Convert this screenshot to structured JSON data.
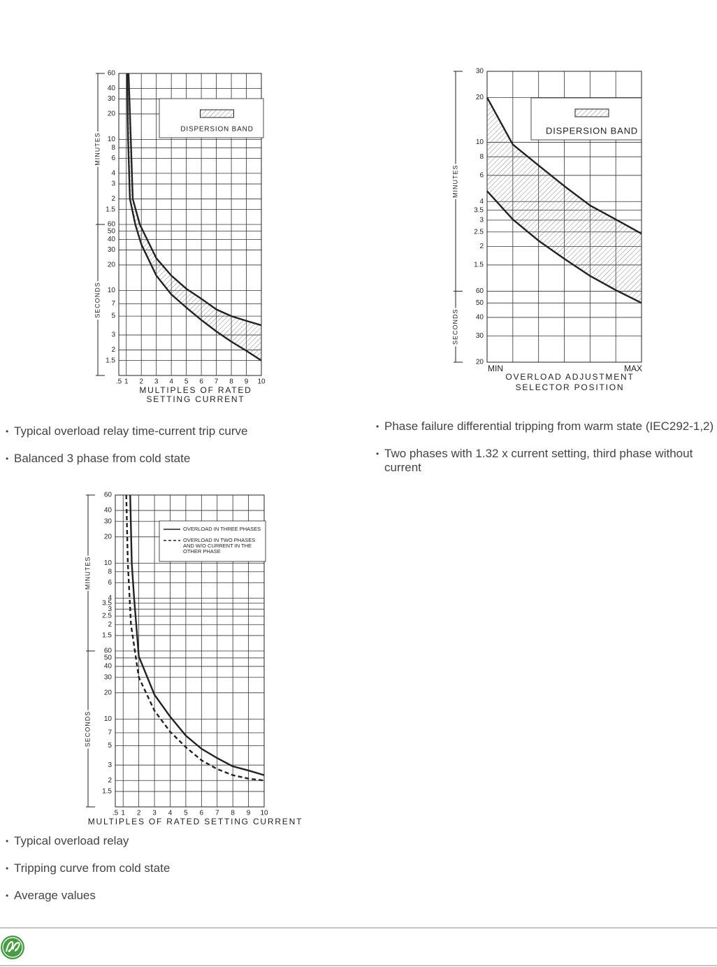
{
  "chart_data": [
    {
      "type": "line",
      "log_y": true,
      "band": true,
      "legend": "DISPERSION BAND",
      "ylabel_upper": "MINUTES",
      "ylabel_lower": "SECONDS",
      "xlabel": [
        "MULTIPLES OF RATED",
        "SETTING CURRENT"
      ],
      "xlim": [
        0.5,
        10
      ],
      "xticks": [
        {
          "value": 0.5,
          "label": ".5"
        },
        1,
        2,
        3,
        4,
        5,
        6,
        7,
        8,
        9,
        10
      ],
      "ylim": [
        1,
        3600
      ],
      "yticks": [
        {
          "value": 3600,
          "label": "60"
        },
        {
          "value": 2400,
          "label": "40"
        },
        {
          "value": 1800,
          "label": "30"
        },
        {
          "value": 1200,
          "label": "20"
        },
        {
          "value": 600,
          "label": "10"
        },
        {
          "value": 480,
          "label": "8"
        },
        {
          "value": 360,
          "label": "6"
        },
        {
          "value": 240,
          "label": "4"
        },
        {
          "value": 180,
          "label": "3"
        },
        {
          "value": 120,
          "label": "2"
        },
        {
          "value": 90,
          "label": "1.5"
        },
        60,
        50,
        40,
        30,
        20,
        10,
        7,
        5,
        3,
        2,
        1.5
      ],
      "series": [
        {
          "color": "#222222",
          "x": [
            1.15,
            1.3,
            1.43,
            1.9,
            3,
            4,
            5,
            6,
            7,
            8,
            9,
            10
          ],
          "values": [
            3600,
            600,
            120,
            60,
            24,
            15,
            10.5,
            8,
            6,
            5,
            4.4,
            3.9
          ]
        },
        {
          "color": "#222222",
          "x": [
            1.05,
            1.12,
            1.24,
            1.6,
            2,
            3,
            4,
            5,
            6,
            7,
            8,
            9,
            10
          ],
          "values": [
            3600,
            600,
            120,
            60,
            35,
            15,
            9,
            6.3,
            4.5,
            3.3,
            2.5,
            1.95,
            1.5
          ]
        }
      ],
      "captions": [
        "Typical overload relay time-current trip curve",
        "Balanced 3 phase from cold state"
      ]
    },
    {
      "type": "line",
      "log_y": true,
      "band": true,
      "legend": "DISPERSION BAND",
      "ylabel_upper": "MINUTES",
      "ylabel_lower": "SECONDS",
      "xlabel": [
        "OVERLOAD ADJUSTMENT",
        "SELECTOR POSITION"
      ],
      "categories": [
        "MIN",
        null,
        null,
        null,
        null,
        null,
        "MAX"
      ],
      "ylim": [
        20,
        1800
      ],
      "yticks": [
        {
          "value": 1800,
          "label": "30"
        },
        {
          "value": 1200,
          "label": "20"
        },
        {
          "value": 600,
          "label": "10"
        },
        {
          "value": 480,
          "label": "8"
        },
        {
          "value": 360,
          "label": "6"
        },
        {
          "value": 240,
          "label": "4"
        },
        {
          "value": 210,
          "label": "3.5"
        },
        {
          "value": 180,
          "label": "3"
        },
        {
          "value": 150,
          "label": "2.5"
        },
        {
          "value": 120,
          "label": "2"
        },
        {
          "value": 90,
          "label": "1.5"
        },
        60,
        50,
        40,
        30,
        20
      ],
      "series": [
        {
          "color": "#222222",
          "values": [
            1200,
            580,
            420,
            305,
            226,
            182,
            146
          ]
        },
        {
          "color": "#222222",
          "values": [
            282,
            182,
            131,
            99,
            76,
            61,
            50
          ]
        }
      ],
      "captions": [
        "Phase failure differential tripping from warm state (IEC292-1,2)",
        "Two phases with 1.32 x current setting, third phase without current"
      ]
    },
    {
      "type": "line",
      "log_y": true,
      "band": false,
      "ylabel_upper": "MINUTES",
      "ylabel_lower": "SECONDS",
      "xlabel": [
        "MULTIPLES OF RATED SETTING CURRENT"
      ],
      "xlim": [
        0.5,
        10
      ],
      "xticks": [
        {
          "value": 0.5,
          "label": ".5"
        },
        1,
        2,
        3,
        4,
        5,
        6,
        7,
        8,
        9,
        10
      ],
      "ylim": [
        1,
        3600
      ],
      "yticks": [
        {
          "value": 3600,
          "label": "60"
        },
        {
          "value": 2400,
          "label": "40"
        },
        {
          "value": 1800,
          "label": "30"
        },
        {
          "value": 1200,
          "label": "20"
        },
        {
          "value": 600,
          "label": "10"
        },
        {
          "value": 480,
          "label": "8"
        },
        {
          "value": 360,
          "label": "6"
        },
        {
          "value": 240,
          "label": "4"
        },
        {
          "value": 210,
          "label": "3.5"
        },
        {
          "value": 180,
          "label": "3"
        },
        {
          "value": 150,
          "label": "2.5"
        },
        {
          "value": 120,
          "label": "2"
        },
        {
          "value": 90,
          "label": "1.5"
        },
        60,
        50,
        40,
        30,
        20,
        10,
        7,
        5,
        3,
        2,
        1.5
      ],
      "series": [
        {
          "name": "OVERLOAD IN THREE PHASES",
          "style": "solid",
          "color": "#222222",
          "x": [
            1.45,
            1.55,
            1.7,
            2,
            3,
            4,
            5,
            6,
            7,
            8,
            9,
            10
          ],
          "values": [
            3600,
            600,
            240,
            52,
            19,
            10.7,
            6.5,
            4.6,
            3.6,
            2.9,
            2.6,
            2.3
          ]
        },
        {
          "name": "OVERLOAD IN TWO PHASES AND W/O CURRENT IN THE OTHER PHASE",
          "style": "dashed",
          "color": "#222222",
          "x": [
            1.2,
            1.3,
            1.5,
            2,
            3,
            4,
            5,
            6,
            7,
            8,
            9,
            10
          ],
          "values": [
            3600,
            600,
            120,
            30,
            12.5,
            7.2,
            4.8,
            3.4,
            2.7,
            2.3,
            2.1,
            2
          ]
        }
      ],
      "captions": [
        "Typical overload relay",
        "Tripping curve from cold state",
        "Average values"
      ]
    }
  ]
}
